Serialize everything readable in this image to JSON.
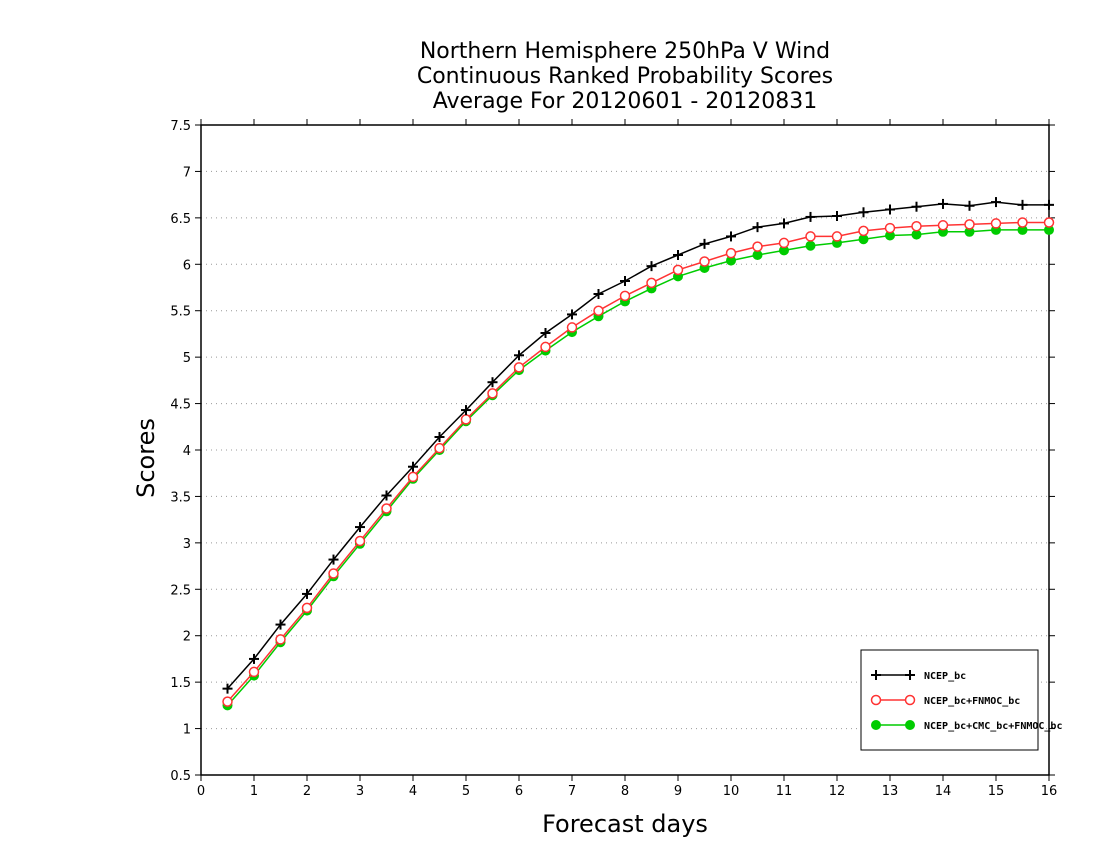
{
  "chart_data": {
    "type": "line",
    "title": [
      "Northern Hemisphere 250hPa V Wind",
      "Continuous Ranked Probability Scores",
      "Average For 20120601 - 20120831"
    ],
    "xlabel": "Forecast days",
    "ylabel": "Scores",
    "xlim": [
      0,
      16
    ],
    "ylim": [
      0.5,
      7.5
    ],
    "xticks": [
      "0",
      "1",
      "2",
      "3",
      "4",
      "5",
      "6",
      "7",
      "8",
      "9",
      "10",
      "11",
      "12",
      "13",
      "14",
      "15",
      "16"
    ],
    "yticks": [
      "0.5",
      "1",
      "1.5",
      "2",
      "2.5",
      "3",
      "3.5",
      "4",
      "4.5",
      "5",
      "5.5",
      "6",
      "6.5",
      "7",
      "7.5"
    ],
    "grid": "horizontal dotted",
    "legend_position": "bottom-right",
    "x": [
      0.5,
      1,
      1.5,
      2,
      2.5,
      3,
      3.5,
      4,
      4.5,
      5,
      5.5,
      6,
      6.5,
      7,
      7.5,
      8,
      8.5,
      9,
      9.5,
      10,
      10.5,
      11,
      11.5,
      12,
      12.5,
      13,
      13.5,
      14,
      14.5,
      15,
      15.5,
      16
    ],
    "series": [
      {
        "name": "NCEP_bc",
        "color": "#000000",
        "marker": "plus",
        "values": [
          1.43,
          1.75,
          2.12,
          2.45,
          2.82,
          3.17,
          3.51,
          3.82,
          4.14,
          4.43,
          4.73,
          5.02,
          5.26,
          5.46,
          5.68,
          5.82,
          5.98,
          6.1,
          6.22,
          6.3,
          6.4,
          6.44,
          6.51,
          6.52,
          6.56,
          6.59,
          6.62,
          6.65,
          6.63,
          6.67,
          6.64,
          6.64
        ]
      },
      {
        "name": "NCEP_bc+FNMOC_bc",
        "color": "#ff3333",
        "marker": "open-circle",
        "values": [
          1.29,
          1.61,
          1.96,
          2.3,
          2.67,
          3.02,
          3.37,
          3.71,
          4.02,
          4.33,
          4.61,
          4.89,
          5.11,
          5.32,
          5.5,
          5.66,
          5.8,
          5.94,
          6.03,
          6.12,
          6.19,
          6.23,
          6.3,
          6.3,
          6.36,
          6.39,
          6.41,
          6.42,
          6.43,
          6.44,
          6.45,
          6.45
        ]
      },
      {
        "name": "NCEP_bc+CMC_bc+FNMOC_bc",
        "color": "#00cc00",
        "marker": "filled-circle",
        "values": [
          1.25,
          1.57,
          1.93,
          2.27,
          2.64,
          2.99,
          3.34,
          3.69,
          4.0,
          4.31,
          4.59,
          4.86,
          5.07,
          5.27,
          5.44,
          5.6,
          5.74,
          5.87,
          5.96,
          6.04,
          6.1,
          6.15,
          6.2,
          6.23,
          6.27,
          6.31,
          6.32,
          6.35,
          6.35,
          6.37,
          6.37,
          6.37
        ]
      }
    ]
  }
}
